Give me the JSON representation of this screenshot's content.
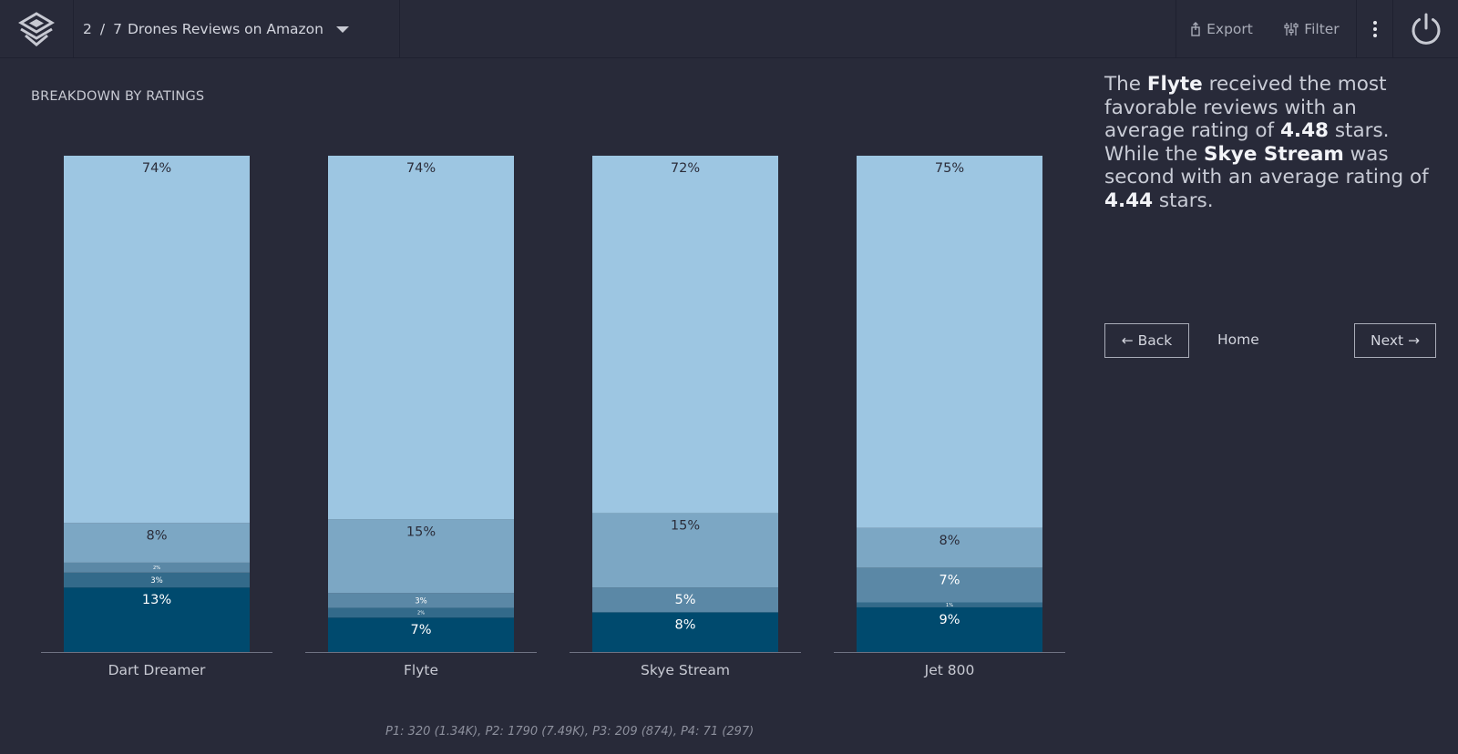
{
  "header": {
    "story_position": "2",
    "story_separator": "/",
    "story_total": "7",
    "story_title": "Drones Reviews on Amazon",
    "export_label": "Export",
    "filter_label": "Filter"
  },
  "section_title": "BREAKDOWN BY RATINGS",
  "chart_data": {
    "type": "bar",
    "stacked": true,
    "normalized": true,
    "title": "BREAKDOWN BY RATINGS",
    "categories": [
      "Dart Dreamer",
      "Flyte",
      "Skye Stream",
      "Jet 800"
    ],
    "series": [
      {
        "color": "#004a6e",
        "values": [
          13,
          7,
          8,
          9
        ],
        "labels": [
          "13%",
          "7%",
          "8%",
          "9%"
        ]
      },
      {
        "color": "#336a8a",
        "values": [
          3,
          2,
          0,
          1
        ],
        "labels": [
          "3%",
          "2%",
          "",
          "1%"
        ]
      },
      {
        "color": "#5b88a6",
        "values": [
          2,
          3,
          5,
          7
        ],
        "labels": [
          "2%",
          "3%",
          "5%",
          "7%"
        ]
      },
      {
        "color": "#7ca7c4",
        "values": [
          8,
          15,
          15,
          8
        ],
        "labels": [
          "8%",
          "15%",
          "15%",
          "8%"
        ]
      },
      {
        "color": "#9dc6e2",
        "values": [
          74,
          74,
          72,
          75
        ],
        "labels": [
          "74%",
          "74%",
          "72%",
          "75%"
        ]
      }
    ],
    "ylim": [
      0,
      100
    ],
    "grid": false,
    "legend": "none"
  },
  "footnote": "P1: 320 (1.34K), P2: 1790 (7.49K), P3: 209 (874), P4: 71 (297)",
  "insight": {
    "p1": "The ",
    "leader": "Flyte",
    "p2": " received the most favorable reviews with an average rating of ",
    "leader_rating": "4.48",
    "p3": " stars. While the ",
    "runner_up": "Skye Stream",
    "p4": " was second with an average rating of ",
    "runner_up_rating": "4.44",
    "p5": " stars."
  },
  "nav": {
    "back_label": "← Back",
    "home_label": "Home",
    "next_label": "Next →"
  },
  "icons": {
    "logo": "layers-logo-icon",
    "export": "export-icon",
    "filter": "filter-sliders-icon",
    "more": "more-vertical-icon",
    "power": "power-icon"
  }
}
